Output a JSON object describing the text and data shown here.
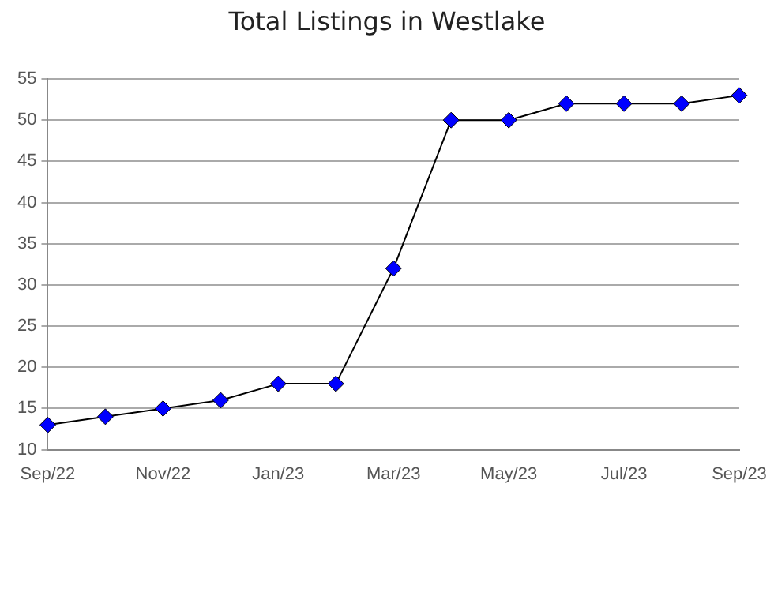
{
  "chart_data": {
    "type": "line",
    "title": "Total Listings in Westlake",
    "categories": [
      "Sep/22",
      null,
      "Nov/22",
      null,
      "Jan/23",
      null,
      "Mar/23",
      null,
      "May/23",
      null,
      "Jul/23",
      null,
      "Sep/23"
    ],
    "series": [
      {
        "color": "#0000ff",
        "values": [
          13,
          14,
          15,
          16,
          18,
          18,
          32,
          50,
          50,
          52,
          52,
          52,
          53
        ]
      }
    ],
    "ylim": [
      10,
      55
    ],
    "yticks": [
      10,
      15,
      20,
      25,
      30,
      35,
      40,
      45,
      50,
      55
    ],
    "grid": "y",
    "legend": false,
    "marker": "diamond",
    "line_style": "solid"
  }
}
